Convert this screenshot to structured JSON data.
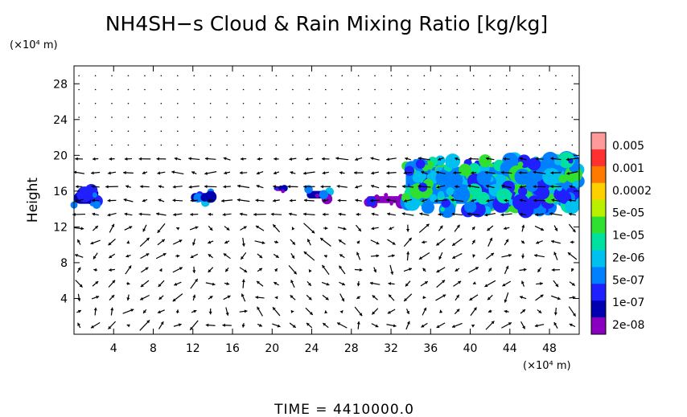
{
  "chart_data": {
    "type": "heatmap",
    "title": "NH4SH−s Cloud & Rain Mixing Ratio [kg/kg]",
    "ylabel": "Height",
    "y_unit": "(×10⁴ m)",
    "x_unit": "(×10⁴ m)",
    "time_label": "TIME  =  4410000.0",
    "xlim": [
      0,
      51
    ],
    "ylim": [
      0,
      30
    ],
    "x_ticks": [
      4,
      8,
      12,
      16,
      20,
      24,
      28,
      32,
      36,
      40,
      44,
      48
    ],
    "y_ticks": [
      4,
      8,
      12,
      16,
      20,
      24,
      28
    ],
    "x_tick_labels": [
      "4",
      "8",
      "12",
      "16",
      "20",
      "24",
      "28",
      "32",
      "36",
      "40",
      "44",
      "48"
    ],
    "y_tick_labels": [
      "4",
      "8",
      "12",
      "16",
      "20",
      "24",
      "28"
    ],
    "colorbar": {
      "labels": [
        "0.005",
        "0.001",
        "0.0002",
        "5e-05",
        "1e-05",
        "2e-06",
        "5e-07",
        "1e-07",
        "2e-08"
      ],
      "colors": [
        "#ff9a9a",
        "#ff3030",
        "#ff7a00",
        "#ffd000",
        "#b8f000",
        "#30e030",
        "#00e0a0",
        "#00c0f0",
        "#0080ff",
        "#2020ff",
        "#0000b0",
        "#8a00c0"
      ]
    },
    "cloud_regions": [
      {
        "x": [
          0,
          2.5
        ],
        "y": [
          14.3,
          16.2
        ],
        "level": "5e-07"
      },
      {
        "x": [
          11.8,
          14
        ],
        "y": [
          14.6,
          16.0
        ],
        "level": "5e-07"
      },
      {
        "x": [
          20.3,
          21.3
        ],
        "y": [
          15.9,
          16.6
        ],
        "level": "1e-07"
      },
      {
        "x": [
          23.5,
          25.8
        ],
        "y": [
          15.0,
          16.2
        ],
        "level": "5e-07"
      },
      {
        "x": [
          29.5,
          33.5
        ],
        "y": [
          14.5,
          15.6
        ],
        "level": "1e-07"
      },
      {
        "x": [
          33.5,
          51
        ],
        "y": [
          13.7,
          19.6
        ],
        "level": "1e-05"
      }
    ],
    "vector_field": "wind arrows on a regular grid over the whole domain (0–51 ×10⁴ m, 0–29 ×10⁴ m)"
  }
}
